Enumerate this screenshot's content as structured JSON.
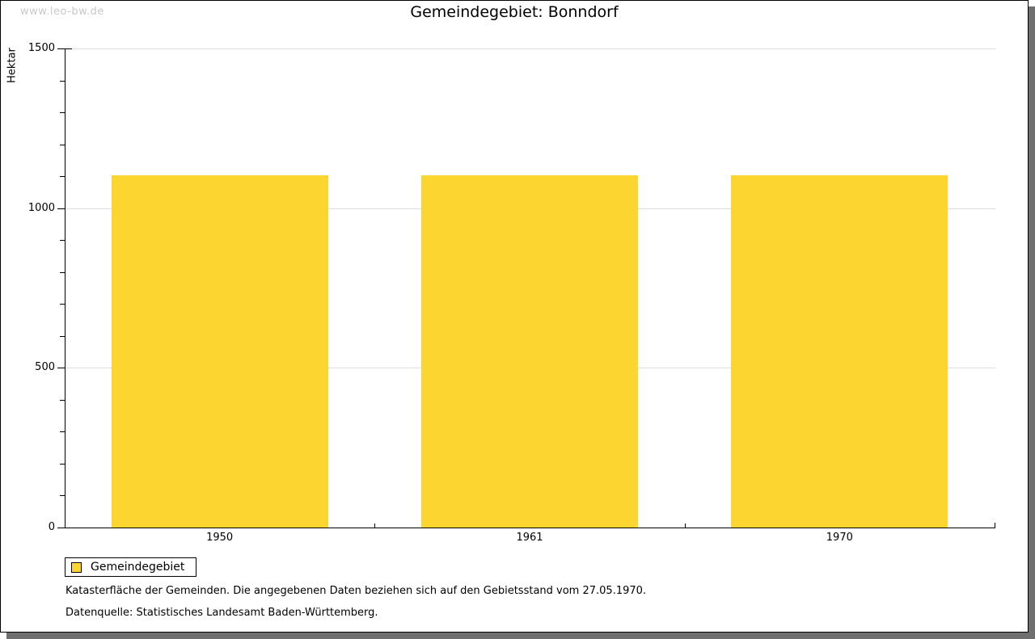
{
  "watermark": "www.leo-bw.de",
  "title": "Gemeindegebiet: Bonndorf",
  "chart_data": {
    "type": "bar",
    "title": "Gemeindegebiet: Bonndorf",
    "categories": [
      "1950",
      "1961",
      "1970"
    ],
    "series": [
      {
        "name": "Gemeindegebiet",
        "values": [
          1102,
          1102,
          1102
        ]
      }
    ],
    "xlabel": "",
    "ylabel": "Hektar",
    "ylim": [
      0,
      1500
    ],
    "y_ticks": [
      0,
      500,
      1000,
      1500
    ],
    "y_minor_step": 100,
    "grid": true,
    "legend_position": "bottom-left"
  },
  "legend": {
    "items": [
      {
        "label": "Gemeindegebiet",
        "color": "#FCD530"
      }
    ]
  },
  "footnotes": [
    "Katasterfläche der Gemeinden. Die angegebenen Daten beziehen sich auf den Gebietsstand vom 27.05.1970.",
    "Datenquelle: Statistisches Landesamt Baden-Württemberg."
  ],
  "colors": {
    "bar": "#FCD530",
    "grid": "#DEDEDE",
    "axis": "#000000",
    "shadow": "#6F6F6F",
    "watermark_text": "#C9C9C9"
  }
}
